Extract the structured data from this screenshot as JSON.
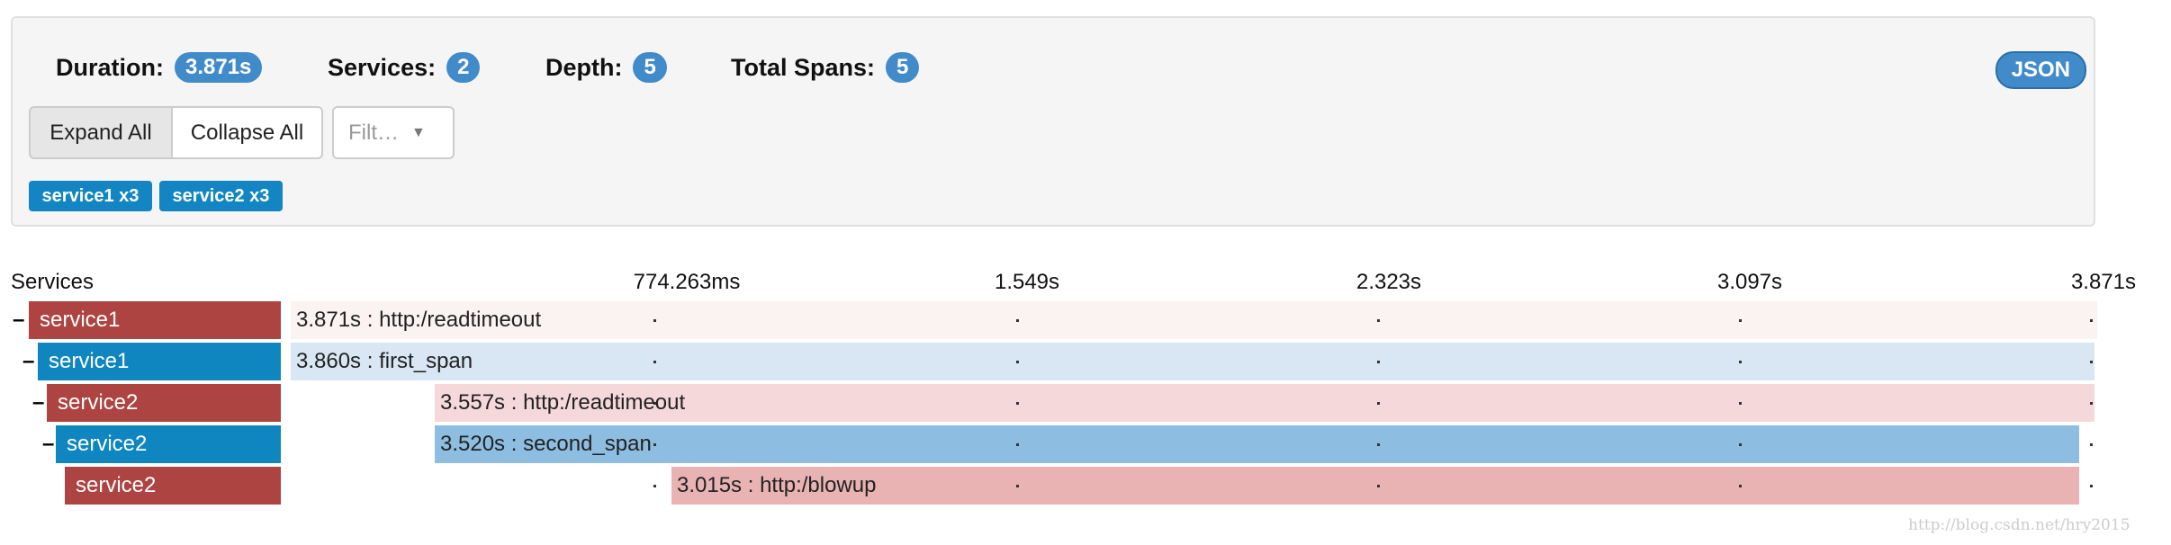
{
  "header": {
    "stats": [
      {
        "label": "Duration:",
        "value": "3.871s"
      },
      {
        "label": "Services:",
        "value": "2"
      },
      {
        "label": "Depth:",
        "value": "5"
      },
      {
        "label": "Total Spans:",
        "value": "5"
      }
    ],
    "json_button": "JSON"
  },
  "controls": {
    "expand_all": "Expand All",
    "collapse_all": "Collapse All",
    "filter": "Filt…"
  },
  "service_tags": [
    "service1 x3",
    "service2 x3"
  ],
  "timeline": {
    "heading": "Services",
    "ticks": [
      "774.263ms",
      "1.549s",
      "2.323s",
      "3.097s",
      "3.871s"
    ],
    "spans": [
      {
        "toggle": "–",
        "service": "service1",
        "label": "3.871s : http:/readtimeout"
      },
      {
        "toggle": "–",
        "service": "service1",
        "label": "3.860s : first_span"
      },
      {
        "toggle": "–",
        "service": "service2",
        "label": "3.557s : http:/readtimeout"
      },
      {
        "toggle": "–",
        "service": "service2",
        "label": "3.520s : second_span"
      },
      {
        "service": "service2",
        "label": "3.015s : http:/blowup"
      }
    ]
  },
  "watermark": "http://blog.csdn.net/hry2015"
}
